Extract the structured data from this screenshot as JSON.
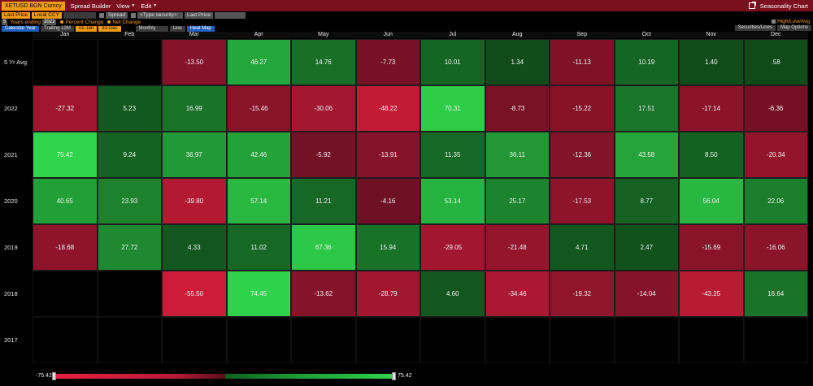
{
  "menubar": {
    "ticker": "XETUSD BGN Curncy",
    "spread_builder": "Spread Builder",
    "view": "View",
    "edit": "Edit",
    "chart_title": "Seasonality Chart"
  },
  "toolbar": {
    "field1": "Last Price",
    "field2": "Local CCY",
    "spread": "Spread",
    "security_placeholder": "<Type security>",
    "field3": "Last Price",
    "years_value": "5",
    "years_label": "Years ending",
    "year_ending": "2022",
    "percent_change": "Percent Change",
    "net_change": "Net Change",
    "high_low": "High/Low/Avg",
    "calendar_year": "Calendar Year",
    "trailing": "Trailing 12M",
    "date_from": "01-Jan",
    "date_to": "31-Dec",
    "monthly": "Monthly",
    "line": "Line",
    "heat_map": "Heat Map",
    "securities_lines": "Securities/Lines",
    "map_options": "Map Options"
  },
  "months": [
    "Jan",
    "Feb",
    "Mar",
    "Apr",
    "May",
    "Jun",
    "Jul",
    "Aug",
    "Sep",
    "Oct",
    "Nov",
    "Dec"
  ],
  "years": [
    "5 Yr Avg",
    "2022",
    "2021",
    "2020",
    "2019",
    "2018",
    "2017"
  ],
  "colors": {
    "max_green": "#2fd44b",
    "max_red": "#e8203f",
    "menubar": "#7a0f1e",
    "accent": "#f39c12"
  },
  "legend": {
    "min": "-75.42",
    "max": "75.42"
  },
  "heatmap": [
    [
      "",
      "",
      "-13.50",
      "46.27",
      "14.76",
      "-7.73",
      "10.01",
      "1.34",
      "-11.13",
      "10.19",
      "1.40",
      ".58"
    ],
    [
      "-27.32",
      "5.23",
      "16.99",
      "-15.46",
      "-30.06",
      "-48.22",
      "70.31",
      "-8.73",
      "-15.22",
      "17.51",
      "-17.14",
      "-6.36"
    ],
    [
      "75.42",
      "9.24",
      "36.97",
      "42.46",
      "-5.92",
      "-13.91",
      "11.35",
      "36.11",
      "-12.36",
      "43.58",
      "8.50",
      "-20.34"
    ],
    [
      "40.65",
      "23.93",
      "-39.80",
      "57.14",
      "11.21",
      "-4.16",
      "53.14",
      "25.17",
      "-17.53",
      "8.77",
      "56.04",
      "22.06"
    ],
    [
      "-18.68",
      "27.72",
      "4.33",
      "11.02",
      "67.36",
      "15.94",
      "-29.05",
      "-21.48",
      "4.71",
      "2.47",
      "-15.69",
      "-16.06"
    ],
    [
      "",
      "",
      "-55.50",
      "74.45",
      "-13.62",
      "-28.79",
      "4.60",
      "-34.46",
      "-19.32",
      "-14.04",
      "-43.25",
      "16.64"
    ],
    [
      "",
      "",
      "",
      "",
      "",
      "",
      "",
      "",
      "",
      "",
      "",
      ""
    ]
  ]
}
